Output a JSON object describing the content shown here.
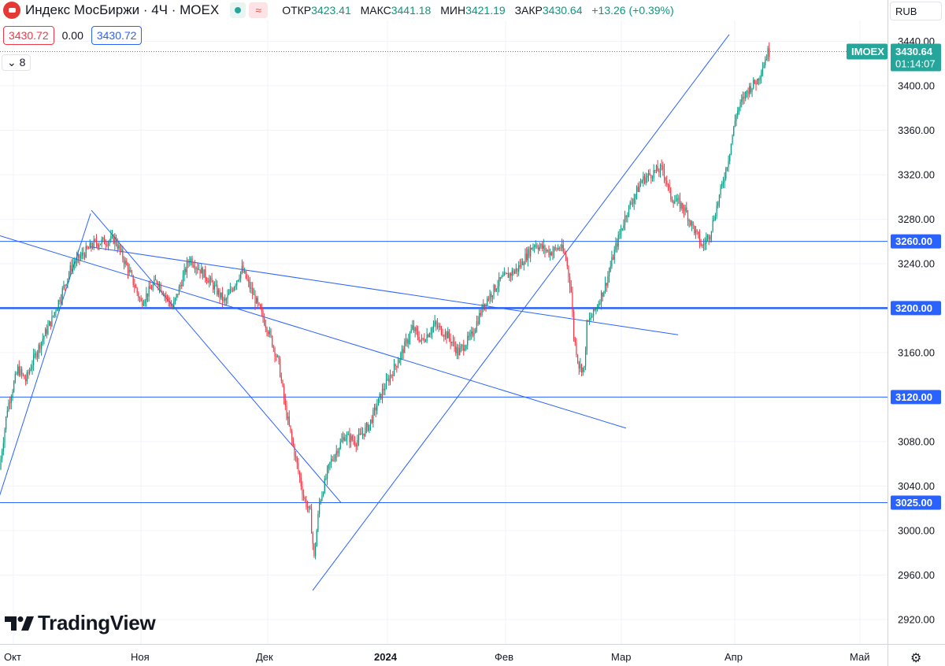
{
  "header": {
    "symbol": "Индекс МосБиржи · 4Ч · MOEX",
    "open_label": "ОТКР",
    "open": "3423.41",
    "high_label": "МАКС",
    "high": "3441.18",
    "low_label": "МИН",
    "low": "3421.19",
    "close_label": "ЗАКР",
    "close": "3430.64",
    "change": "+13.26 (+0.39%)"
  },
  "trade": {
    "sell": "3430.72",
    "spread": "0.00",
    "buy": "3430.72"
  },
  "indicators_count": "8",
  "currency": "RUB",
  "brand": "TradingView",
  "colors": {
    "up": "#089981",
    "down": "#f23645",
    "line": "#2962ff",
    "accent_price": "#26a69a"
  },
  "chart_data": {
    "type": "candlestick",
    "ylim": [
      2905,
      3470
    ],
    "yticks": [
      2920,
      2960,
      3000,
      3040,
      3080,
      3120,
      3160,
      3200,
      3240,
      3280,
      3320,
      3360,
      3400,
      3440
    ],
    "xlabels": [
      "Окт",
      "Ноя",
      "Дек",
      "2024",
      "Фев",
      "Мар",
      "Апр",
      "Май"
    ],
    "price_label": {
      "name": "IMOEX",
      "value": "3430.64",
      "countdown": "01:14:07"
    },
    "levels": [
      {
        "value": 3260,
        "label": "3260.00",
        "thick": false
      },
      {
        "value": 3200,
        "label": "3200.00",
        "thick": true
      },
      {
        "value": 3120,
        "label": "3120.00",
        "thick": false
      },
      {
        "value": 3025,
        "label": "3025.00",
        "thick": false
      }
    ],
    "anchors": [
      [
        0,
        3055
      ],
      [
        6,
        3110
      ],
      [
        14,
        3145
      ],
      [
        20,
        3135
      ],
      [
        28,
        3160
      ],
      [
        40,
        3190
      ],
      [
        55,
        3238
      ],
      [
        72,
        3258
      ],
      [
        88,
        3262
      ],
      [
        98,
        3235
      ],
      [
        108,
        3205
      ],
      [
        120,
        3225
      ],
      [
        132,
        3200
      ],
      [
        145,
        3245
      ],
      [
        160,
        3225
      ],
      [
        172,
        3205
      ],
      [
        185,
        3235
      ],
      [
        196,
        3205
      ],
      [
        205,
        3180
      ],
      [
        213,
        3150
      ],
      [
        218,
        3110
      ],
      [
        225,
        3070
      ],
      [
        232,
        3030
      ],
      [
        237,
        3015
      ],
      [
        240,
        2975
      ],
      [
        244,
        3025
      ],
      [
        252,
        3060
      ],
      [
        263,
        3085
      ],
      [
        272,
        3080
      ],
      [
        282,
        3095
      ],
      [
        292,
        3125
      ],
      [
        305,
        3155
      ],
      [
        315,
        3182
      ],
      [
        322,
        3170
      ],
      [
        332,
        3185
      ],
      [
        342,
        3175
      ],
      [
        350,
        3160
      ],
      [
        360,
        3175
      ],
      [
        370,
        3205
      ],
      [
        382,
        3225
      ],
      [
        395,
        3235
      ],
      [
        408,
        3258
      ],
      [
        420,
        3250
      ],
      [
        428,
        3255
      ],
      [
        432,
        3245
      ],
      [
        436,
        3215
      ],
      [
        438,
        3175
      ],
      [
        442,
        3148
      ],
      [
        446,
        3145
      ],
      [
        448,
        3185
      ],
      [
        455,
        3200
      ],
      [
        462,
        3220
      ],
      [
        470,
        3255
      ],
      [
        478,
        3285
      ],
      [
        490,
        3315
      ],
      [
        500,
        3323
      ],
      [
        506,
        3325
      ],
      [
        512,
        3300
      ],
      [
        522,
        3290
      ],
      [
        530,
        3270
      ],
      [
        536,
        3255
      ],
      [
        542,
        3268
      ],
      [
        550,
        3305
      ],
      [
        556,
        3335
      ],
      [
        562,
        3375
      ],
      [
        570,
        3395
      ],
      [
        578,
        3405
      ],
      [
        586,
        3430
      ]
    ],
    "trendlines": [
      [
        [
          -2,
          3028
        ],
        [
          115,
          3285
        ]
      ],
      [
        [
          116,
          3288
        ],
        [
          433,
          3025
        ]
      ],
      [
        [
          115,
          3255
        ],
        [
          861,
          3176
        ]
      ],
      [
        [
          0,
          3265
        ],
        [
          795,
          3092
        ]
      ],
      [
        [
          397,
          2946
        ],
        [
          926,
          3446
        ]
      ]
    ]
  }
}
